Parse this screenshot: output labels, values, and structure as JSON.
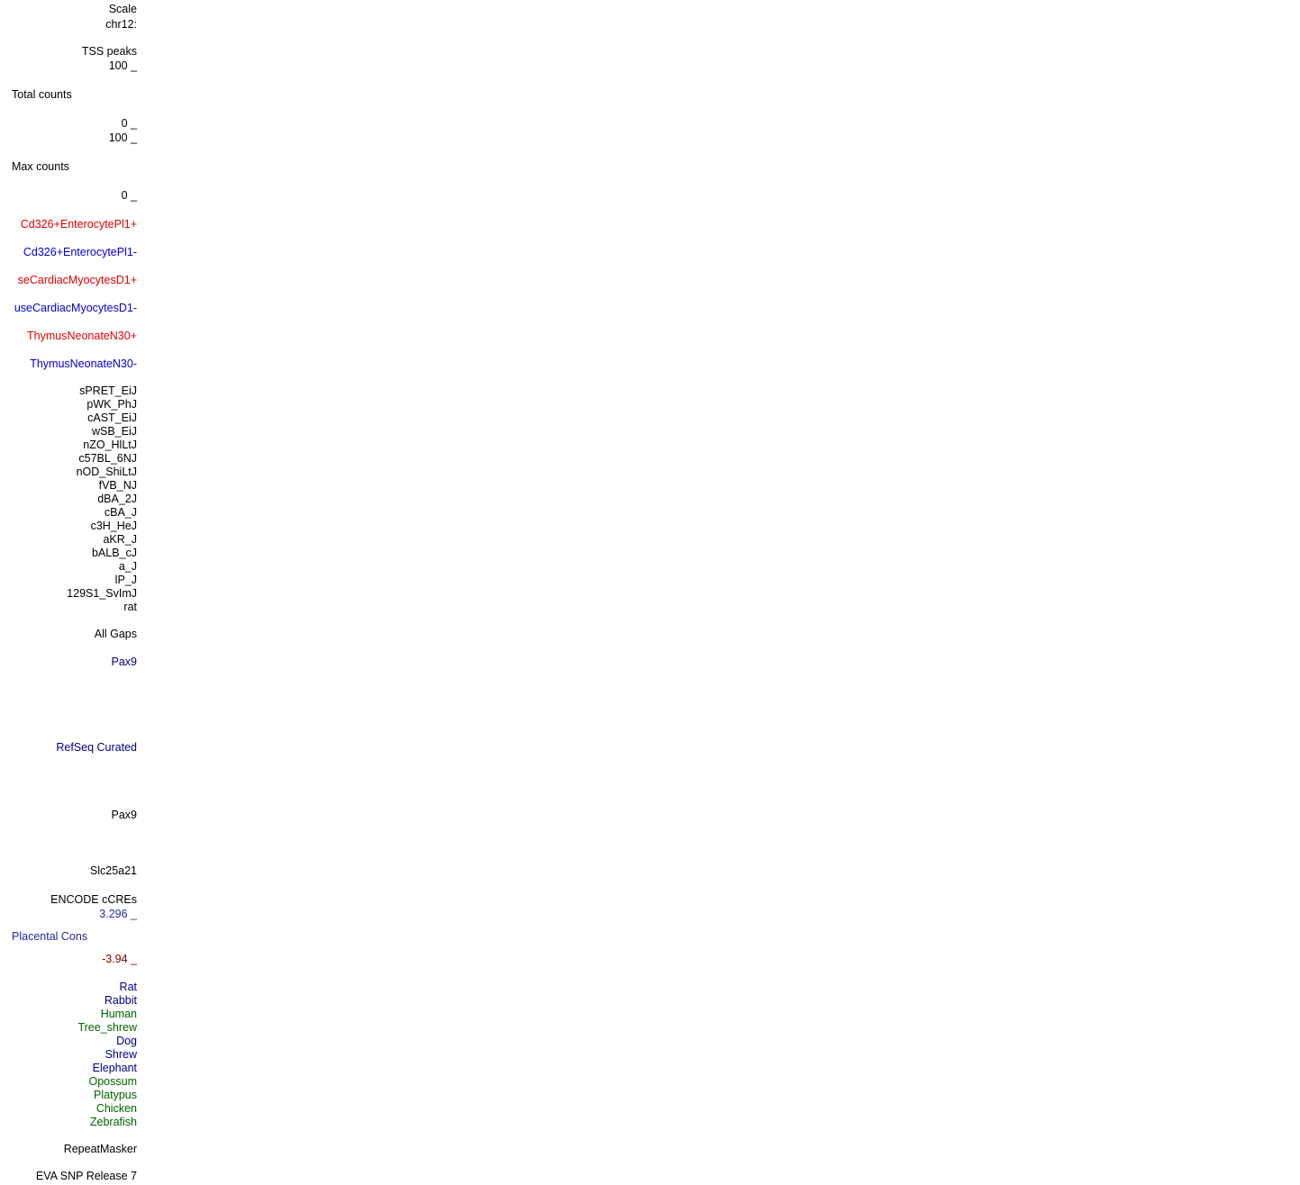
{
  "labels": {
    "scale": "Scale",
    "chrom": "chr12:",
    "tss_peaks": "TSS peaks",
    "total_counts": {
      "max": "100 _",
      "title": "Total counts",
      "min": "0 _"
    },
    "max_counts": {
      "max": "100 _",
      "title": "Max counts",
      "min": "0 _"
    },
    "cd326_plus": "Cd326+EnterocytePl1+",
    "cd326_minus": "Cd326+EnterocytePl1-",
    "cardiac_plus": "seCardiacMyocytesD1+",
    "cardiac_minus": "useCardiacMyocytesD1-",
    "thymus_plus": "ThymusNeonateN30+",
    "thymus_minus": "ThymusNeonateN30-",
    "strains": [
      "sPRET_EiJ",
      "pWK_PhJ",
      "cAST_EiJ",
      "wSB_EiJ",
      "nZO_HlLtJ",
      "c57BL_6NJ",
      "nOD_ShiLtJ",
      "fVB_NJ",
      "dBA_2J",
      "cBA_J",
      "c3H_HeJ",
      "aKR_J",
      "bALB_cJ",
      "a_J",
      "lP_J",
      "129S1_SvImJ",
      "rat"
    ],
    "all_gaps": "All Gaps",
    "pax9_blue": "Pax9",
    "refseq": "RefSeq Curated",
    "pax9": "Pax9",
    "slc25a21": "Slc25a21",
    "encode": "ENCODE cCREs",
    "placental": {
      "max": "3.296 _",
      "title": "Placental Cons",
      "min": "-3.94 _"
    },
    "species": [
      {
        "name": "Rat",
        "color": "navy"
      },
      {
        "name": "Rabbit",
        "color": "navy"
      },
      {
        "name": "Human",
        "color": "green"
      },
      {
        "name": "Tree_shrew",
        "color": "green"
      },
      {
        "name": "Dog",
        "color": "navy"
      },
      {
        "name": "Shrew",
        "color": "navy"
      },
      {
        "name": "Elephant",
        "color": "navy"
      },
      {
        "name": "Opossum",
        "color": "green"
      },
      {
        "name": "Platypus",
        "color": "green"
      },
      {
        "name": "Chicken",
        "color": "green"
      },
      {
        "name": "Zebrafish",
        "color": "green"
      }
    ],
    "repeatmasker": "RepeatMasker",
    "eva": "EVA SNP Release 7"
  }
}
